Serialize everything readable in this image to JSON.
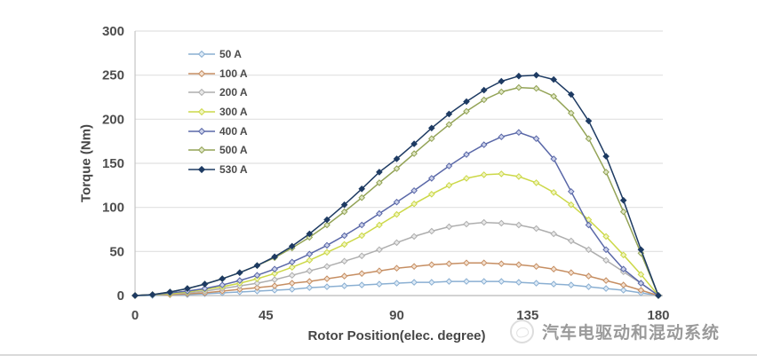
{
  "chart_data": {
    "type": "line",
    "title": "",
    "xlabel": "Rotor Position(elec. degree)",
    "ylabel": "Torque (Nm)",
    "xlim": [
      0,
      180
    ],
    "ylim": [
      0,
      300
    ],
    "x_ticks": [
      0,
      45,
      90,
      135,
      180
    ],
    "y_ticks": [
      0,
      50,
      100,
      150,
      200,
      250,
      300
    ],
    "grid": "horizontal-only",
    "legend_position": "inside-top-left",
    "marker": "diamond",
    "x": [
      0,
      6,
      12,
      18,
      24,
      30,
      36,
      42,
      48,
      54,
      60,
      66,
      72,
      78,
      84,
      90,
      96,
      102,
      108,
      114,
      120,
      126,
      132,
      138,
      144,
      150,
      156,
      162,
      168,
      174,
      180
    ],
    "series": [
      {
        "name": "50 A",
        "color": "#8aafd2",
        "marker_fill": "#ddeaf6",
        "values": [
          0,
          0,
          1,
          1,
          2,
          3,
          4,
          5,
          6,
          7,
          9,
          10,
          11,
          12,
          13,
          14,
          15,
          15,
          16,
          16,
          16,
          16,
          15,
          14,
          13,
          12,
          10,
          8,
          6,
          3,
          0
        ]
      },
      {
        "name": "100 A",
        "color": "#c68e62",
        "marker_fill": "#f2e0d0",
        "values": [
          0,
          1,
          1,
          2,
          3,
          5,
          7,
          9,
          11,
          14,
          16,
          19,
          22,
          25,
          28,
          31,
          33,
          35,
          36,
          37,
          37,
          36,
          35,
          33,
          30,
          26,
          22,
          17,
          12,
          6,
          0
        ]
      },
      {
        "name": "200 A",
        "color": "#aeaeae",
        "marker_fill": "#e8e8e8",
        "values": [
          0,
          1,
          2,
          3,
          5,
          8,
          11,
          14,
          18,
          23,
          28,
          33,
          39,
          45,
          52,
          60,
          67,
          73,
          78,
          81,
          83,
          82,
          80,
          76,
          70,
          62,
          52,
          40,
          27,
          14,
          0
        ]
      },
      {
        "name": "300 A",
        "color": "#ccd848",
        "marker_fill": "#f0f5c0",
        "values": [
          0,
          1,
          2,
          4,
          7,
          10,
          14,
          19,
          25,
          32,
          40,
          49,
          58,
          68,
          80,
          92,
          104,
          115,
          125,
          133,
          137,
          138,
          135,
          128,
          117,
          103,
          86,
          67,
          46,
          24,
          0
        ]
      },
      {
        "name": "400 A",
        "color": "#5a68a8",
        "marker_fill": "#ccd2ea",
        "values": [
          0,
          1,
          3,
          5,
          8,
          12,
          17,
          23,
          30,
          38,
          47,
          57,
          68,
          80,
          93,
          106,
          119,
          133,
          147,
          160,
          171,
          180,
          185,
          178,
          155,
          118,
          80,
          52,
          30,
          14,
          0
        ]
      },
      {
        "name": "500 A",
        "color": "#93a356",
        "marker_fill": "#dfe6c4",
        "values": [
          0,
          1,
          4,
          8,
          13,
          19,
          26,
          34,
          43,
          54,
          66,
          80,
          95,
          111,
          128,
          144,
          161,
          178,
          194,
          209,
          222,
          231,
          236,
          235,
          226,
          207,
          178,
          140,
          95,
          48,
          0
        ]
      },
      {
        "name": "530 A",
        "color": "#1e3b63",
        "marker_fill": "#1e3b63",
        "values": [
          0,
          1,
          4,
          8,
          13,
          19,
          26,
          34,
          44,
          56,
          70,
          86,
          103,
          121,
          140,
          155,
          172,
          190,
          206,
          220,
          233,
          243,
          249,
          250,
          245,
          228,
          198,
          158,
          108,
          52,
          0
        ]
      }
    ]
  },
  "watermark": {
    "text": "汽车电驱动和混动系统"
  }
}
